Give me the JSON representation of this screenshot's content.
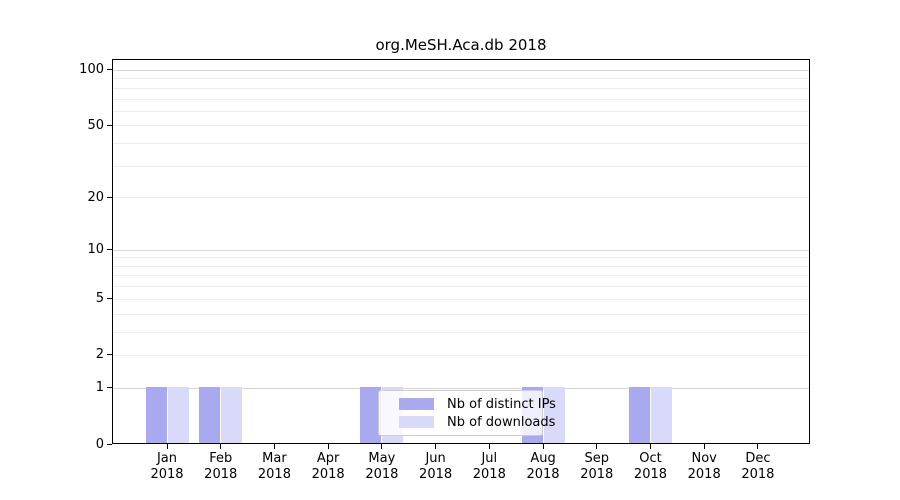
{
  "title": "org.MeSH.Aca.db 2018",
  "chart_data": {
    "type": "bar",
    "title": "org.MeSH.Aca.db 2018",
    "categories": [
      "Jan 2018",
      "Feb 2018",
      "Mar 2018",
      "Apr 2018",
      "May 2018",
      "Jun 2018",
      "Jul 2018",
      "Aug 2018",
      "Sep 2018",
      "Oct 2018",
      "Nov 2018",
      "Dec 2018"
    ],
    "series": [
      {
        "name": "Nb of distinct IPs",
        "color": "#a9a9f0",
        "values": [
          1,
          1,
          0,
          0,
          1,
          0,
          0,
          1,
          0,
          1,
          0,
          0
        ]
      },
      {
        "name": "Nb of downloads",
        "color": "#d9d9f9",
        "values": [
          1,
          1,
          0,
          0,
          1,
          0,
          0,
          1,
          0,
          1,
          0,
          0
        ]
      }
    ],
    "y_axis": {
      "scale": "log10(1+x)",
      "tick_values": [
        0,
        1,
        2,
        5,
        10,
        20,
        50,
        100
      ],
      "gridline_values": [
        1,
        2,
        3,
        4,
        5,
        6,
        7,
        8,
        9,
        10,
        20,
        30,
        40,
        50,
        60,
        70,
        80,
        90,
        100
      ],
      "major_gridline_values": [
        1,
        10,
        100
      ],
      "range": [
        0,
        115
      ]
    },
    "xlabel": "",
    "ylabel": "",
    "grid": true,
    "legend_position": "lower center",
    "colors": {
      "axis": "#000000",
      "grid_minor": "#ececec",
      "grid_major": "#d6d6d6",
      "background": "#ffffff"
    }
  }
}
